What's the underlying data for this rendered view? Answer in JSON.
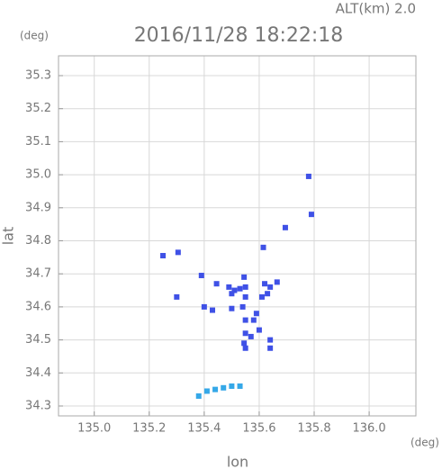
{
  "chart_data": {
    "type": "scatter",
    "title": "2016/11/28 18:22:18",
    "subtitle": "ALT(km)  2.0",
    "y_unit": "(deg)",
    "x_unit": "(deg)",
    "xlabel": "lon",
    "ylabel": "lat",
    "xlim": [
      134.87,
      136.17
    ],
    "ylim": [
      34.27,
      35.36
    ],
    "xticks": [
      {
        "value": 135.0,
        "label": "135.0"
      },
      135.2,
      135.4,
      135.6,
      135.8,
      {
        "value": 136.0,
        "label": "136.0"
      }
    ],
    "yticks": [
      34.3,
      34.4,
      34.5,
      34.6,
      34.7,
      34.8,
      34.9,
      {
        "value": 35.0,
        "label": "35.0"
      },
      35.1,
      35.2,
      35.3
    ],
    "grid": true,
    "series": [
      {
        "color": "#3f51e6",
        "x": [
          135.25,
          135.305,
          135.3,
          135.39,
          135.4,
          135.43,
          135.445,
          135.49,
          135.51,
          135.53,
          135.55,
          135.545,
          135.5,
          135.55,
          135.54,
          135.55,
          135.58,
          135.59,
          135.55,
          135.57,
          135.545,
          135.6,
          135.61,
          135.63,
          135.62,
          135.64,
          135.665,
          135.64,
          135.64,
          135.615,
          135.695,
          135.78,
          135.79,
          135.5,
          135.55
        ],
        "values": [
          34.755,
          34.765,
          34.63,
          34.695,
          34.6,
          34.59,
          34.67,
          34.66,
          34.65,
          34.655,
          34.66,
          34.69,
          34.64,
          34.63,
          34.6,
          34.56,
          34.56,
          34.58,
          34.52,
          34.51,
          34.49,
          34.53,
          34.63,
          34.64,
          34.67,
          34.66,
          34.675,
          34.5,
          34.475,
          34.78,
          34.84,
          34.995,
          34.88,
          34.595,
          34.475
        ]
      },
      {
        "color": "#35a8e8",
        "x": [
          135.38,
          135.41,
          135.44,
          135.47,
          135.5,
          135.53
        ],
        "values": [
          34.33,
          34.345,
          34.35,
          34.355,
          34.36,
          34.36
        ]
      }
    ]
  }
}
